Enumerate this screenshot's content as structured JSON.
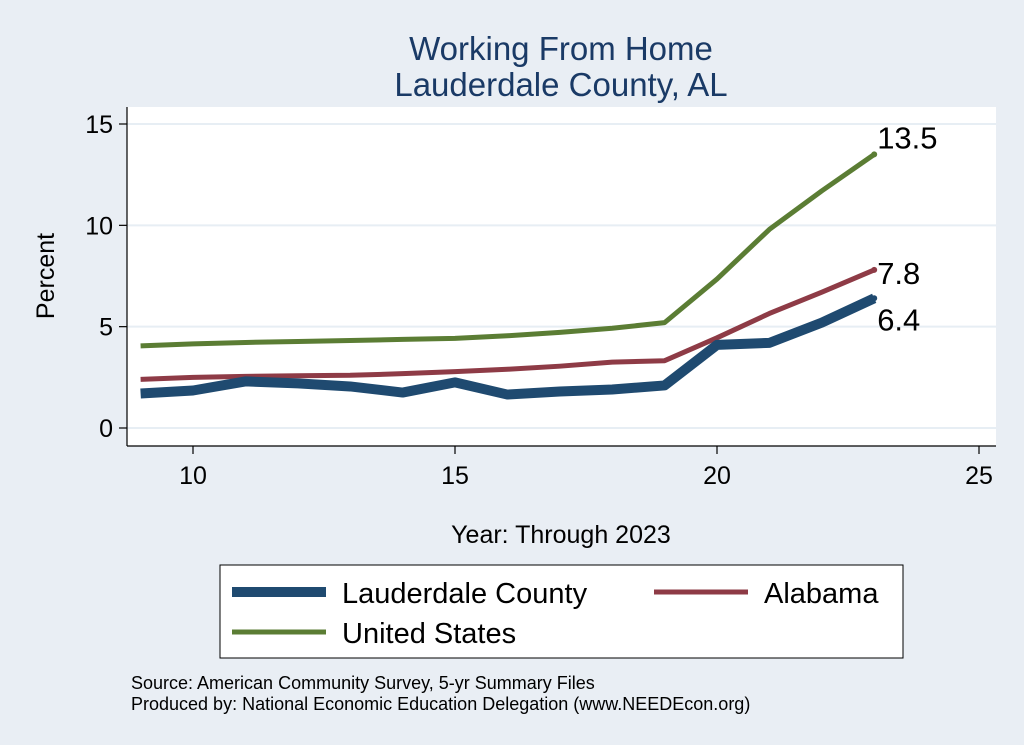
{
  "chart_data": {
    "type": "line",
    "title": [
      "Working From Home",
      "Lauderdale County, AL"
    ],
    "xlabel": "Year: Through 2023",
    "ylabel": "Percent",
    "xlim": [
      9,
      25
    ],
    "ylim": [
      0,
      15
    ],
    "x_ticks": [
      10,
      15,
      20,
      25
    ],
    "y_ticks": [
      0,
      5,
      10,
      15
    ],
    "grid": true,
    "legend_placement": "bottom",
    "series": [
      {
        "name": "Lauderdale County",
        "color": "#1f4a70",
        "x": [
          9,
          10,
          11,
          12,
          13,
          14,
          15,
          16,
          17,
          18,
          19,
          20,
          21,
          22,
          23
        ],
        "values": [
          1.7,
          1.85,
          2.3,
          2.2,
          2.05,
          1.75,
          2.25,
          1.65,
          1.8,
          1.9,
          2.1,
          4.1,
          4.2,
          5.2,
          6.4
        ],
        "end_label": "6.4"
      },
      {
        "name": "Alabama",
        "color": "#8e3b46",
        "x": [
          9,
          10,
          11,
          12,
          13,
          14,
          15,
          16,
          17,
          18,
          19,
          20,
          21,
          22,
          23
        ],
        "values": [
          2.4,
          2.5,
          2.55,
          2.58,
          2.6,
          2.68,
          2.78,
          2.9,
          3.05,
          3.25,
          3.32,
          4.45,
          5.65,
          6.7,
          7.8
        ],
        "end_label": "7.8"
      },
      {
        "name": "United States",
        "color": "#5b7d34",
        "x": [
          9,
          10,
          11,
          12,
          13,
          14,
          15,
          16,
          17,
          18,
          19,
          20,
          21,
          22,
          23
        ],
        "values": [
          4.05,
          4.15,
          4.22,
          4.27,
          4.32,
          4.37,
          4.42,
          4.55,
          4.72,
          4.92,
          5.2,
          7.35,
          9.8,
          11.7,
          13.5
        ],
        "end_label": "13.5"
      }
    ],
    "source_notes": [
      "Source: American Community Survey, 5-yr Summary Files",
      "Produced by: National Economic Education Delegation (www.NEEDEcon.org)"
    ]
  }
}
